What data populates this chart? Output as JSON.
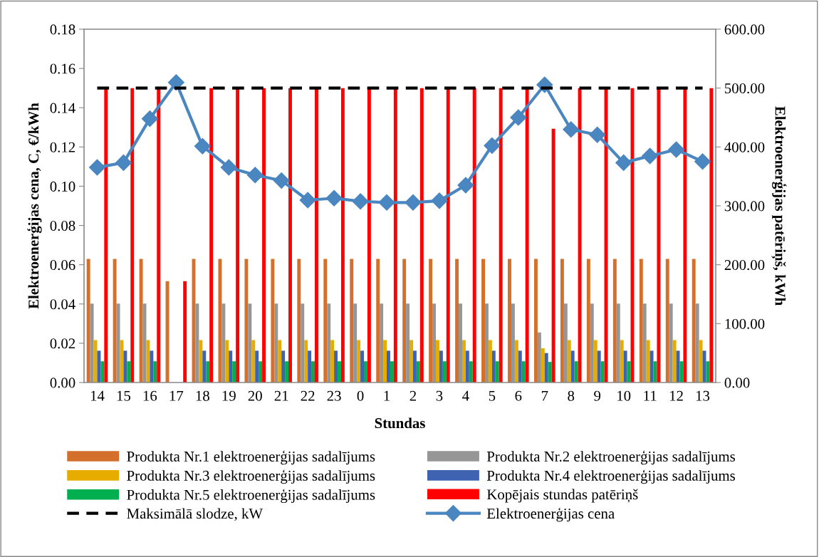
{
  "chart_data": {
    "type": "bar",
    "xlabel": "Stundas",
    "ylabel": "Elektroenerģijas cena, C, €/kWh",
    "y2label": "Elektroenerģijas patēriņš, kWh",
    "categories": [
      "14",
      "15",
      "16",
      "17",
      "18",
      "19",
      "20",
      "21",
      "22",
      "23",
      "0",
      "1",
      "2",
      "3",
      "4",
      "5",
      "6",
      "7",
      "8",
      "9",
      "10",
      "11",
      "12",
      "13"
    ],
    "ylim": [
      0,
      0.18
    ],
    "yticks": [
      {
        "value": 0,
        "label": "0.00"
      },
      {
        "value": 0.02,
        "label": "0.02"
      },
      {
        "value": 0.04,
        "label": "0.04"
      },
      {
        "value": 0.06,
        "label": "0.06"
      },
      {
        "value": 0.08,
        "label": "0.08"
      },
      {
        "value": 0.1,
        "label": "0.10"
      },
      {
        "value": 0.12,
        "label": "0.12"
      },
      {
        "value": 0.14,
        "label": "0.14"
      },
      {
        "value": 0.16,
        "label": "0.16"
      },
      {
        "value": 0.18,
        "label": "0.18"
      }
    ],
    "y2lim": [
      0,
      600
    ],
    "y2ticks": [
      {
        "value": 0,
        "label": "0.00"
      },
      {
        "value": 100,
        "label": "100.00"
      },
      {
        "value": 200,
        "label": "200.00"
      },
      {
        "value": 300,
        "label": "300.00"
      },
      {
        "value": 400,
        "label": "400.00"
      },
      {
        "value": 500,
        "label": "500.00"
      },
      {
        "value": 600,
        "label": "600.00"
      }
    ],
    "grid": false,
    "legend": "bottom",
    "series": [
      {
        "name": "Produkta Nr.1 elektroenerģijas sadalījums",
        "axis": "y2",
        "color": "#d4702c",
        "values": [
          210,
          210,
          210,
          172,
          210,
          210,
          210,
          210,
          210,
          210,
          210,
          210,
          210,
          210,
          210,
          210,
          210,
          210,
          210,
          210,
          210,
          210,
          210,
          210
        ]
      },
      {
        "name": "Produkta Nr.2 elektroenerģijas sadalījums",
        "axis": "y2",
        "color": "#969696",
        "values": [
          134,
          134,
          134,
          0,
          134,
          134,
          134,
          134,
          134,
          134,
          134,
          134,
          134,
          134,
          134,
          134,
          134,
          85,
          134,
          134,
          134,
          134,
          134,
          134
        ]
      },
      {
        "name": "Produkta Nr.3 elektroenerģijas sadalījums",
        "axis": "y2",
        "color": "#e6ac00",
        "values": [
          72,
          72,
          72,
          0,
          72,
          72,
          72,
          72,
          72,
          72,
          72,
          72,
          72,
          72,
          72,
          72,
          72,
          58,
          72,
          72,
          72,
          72,
          72,
          72
        ]
      },
      {
        "name": "Produkta Nr.4 elektroenerģijas sadalījums",
        "axis": "y2",
        "color": "#3f63b0",
        "values": [
          54,
          54,
          54,
          0,
          54,
          54,
          54,
          54,
          54,
          54,
          54,
          54,
          54,
          54,
          54,
          54,
          54,
          50,
          54,
          54,
          54,
          54,
          54,
          54
        ]
      },
      {
        "name": "Produkta Nr.5 elektroenerģijas sadalījums",
        "axis": "y2",
        "color": "#00b050",
        "values": [
          36,
          36,
          36,
          0,
          36,
          36,
          36,
          36,
          36,
          36,
          36,
          36,
          36,
          36,
          36,
          36,
          36,
          35,
          36,
          36,
          36,
          36,
          36,
          36
        ]
      },
      {
        "name": "Kopējais stundas patēriņš",
        "axis": "y2",
        "color": "#ff0000",
        "values": [
          500,
          500,
          500,
          172,
          500,
          500,
          500,
          500,
          500,
          500,
          500,
          500,
          500,
          500,
          500,
          500,
          500,
          431,
          500,
          500,
          500,
          500,
          500,
          500
        ]
      },
      {
        "name": "Maksimālā slodze, kW",
        "type": "line",
        "axis": "y2",
        "color": "#000000",
        "line_style": "dashed",
        "marker": "none",
        "values": [
          500,
          500,
          500,
          500,
          500,
          500,
          500,
          500,
          500,
          500,
          500,
          500,
          500,
          500,
          500,
          500,
          500,
          500,
          500,
          500,
          500,
          500,
          500,
          500
        ]
      },
      {
        "name": "Elektroenerģijas cena",
        "type": "line",
        "axis": "y",
        "color": "#4a86c0",
        "line_style": "solid",
        "marker": "diamond",
        "values": [
          0.1096,
          0.112,
          0.1344,
          0.1529,
          0.1204,
          0.1096,
          0.1057,
          0.1029,
          0.0929,
          0.0939,
          0.0923,
          0.0917,
          0.0917,
          0.0926,
          0.1005,
          0.1207,
          0.135,
          0.1517,
          0.1289,
          0.1262,
          0.112,
          0.1154,
          0.1187,
          0.1126
        ]
      }
    ]
  }
}
